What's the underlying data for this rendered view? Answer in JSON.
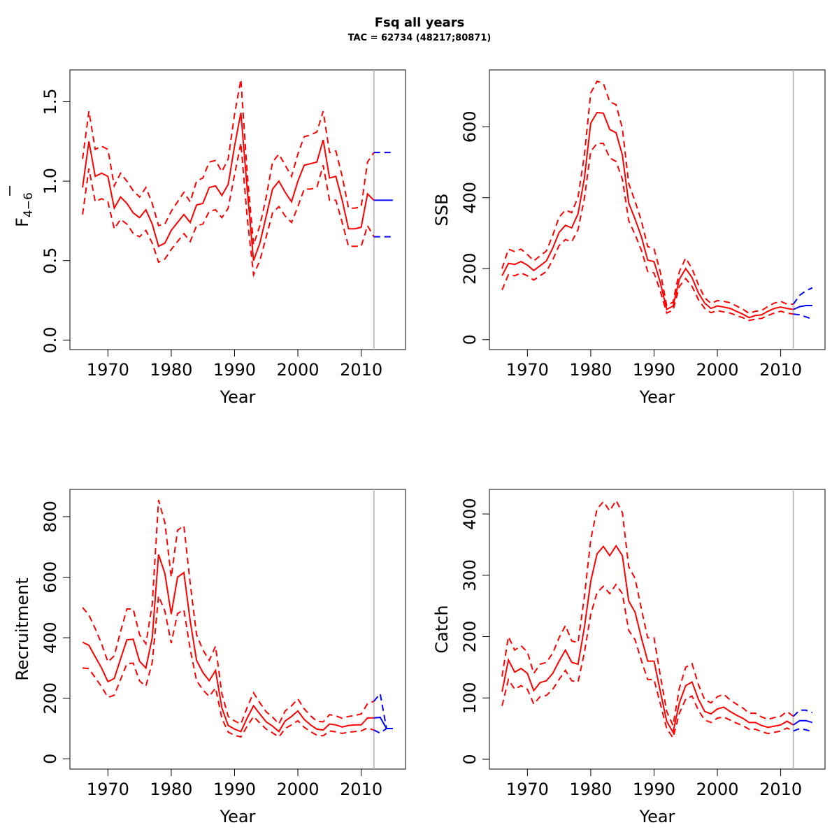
{
  "title": "Fsq all years",
  "subtitle": "TAC = 62734 (48217;80871)",
  "colors": {
    "estimate": "#ff0000",
    "forecast": "#0000ff",
    "divider": "#bebebe"
  },
  "chart_data": [
    {
      "type": "line",
      "panel": "top-left",
      "xlabel": "Year",
      "ylabel": "F",
      "ylabel_sub": "4−6",
      "xlim": [
        1964,
        2017
      ],
      "ylim": [
        -0.06,
        1.7
      ],
      "xticks": [
        1970,
        1980,
        1990,
        2000,
        2010
      ],
      "yticks": [
        0.0,
        0.5,
        1.0,
        1.5
      ],
      "ytick_labels": [
        "0.0",
        "0.5",
        "1.0",
        "1.5"
      ],
      "divider_x": 2012,
      "x": [
        1966,
        1967,
        1968,
        1969,
        1970,
        1971,
        1972,
        1973,
        1974,
        1975,
        1976,
        1977,
        1978,
        1979,
        1980,
        1981,
        1982,
        1983,
        1984,
        1985,
        1986,
        1987,
        1988,
        1989,
        1990,
        1991,
        1992,
        1993,
        1994,
        1995,
        1996,
        1997,
        1998,
        1999,
        2000,
        2001,
        2002,
        2003,
        2004,
        2005,
        2006,
        2007,
        2008,
        2009,
        2010,
        2011,
        2012
      ],
      "series": [
        {
          "role": "estimate",
          "values": [
            0.96,
            1.25,
            1.03,
            1.05,
            1.03,
            0.83,
            0.9,
            0.86,
            0.8,
            0.77,
            0.82,
            0.73,
            0.59,
            0.61,
            0.69,
            0.74,
            0.79,
            0.74,
            0.85,
            0.86,
            0.96,
            0.97,
            0.91,
            0.98,
            1.22,
            1.43,
            0.95,
            0.5,
            0.61,
            0.78,
            0.95,
            1.0,
            0.93,
            0.87,
            1.0,
            1.1,
            1.11,
            1.12,
            1.26,
            1.02,
            1.03,
            0.88,
            0.7,
            0.7,
            0.71,
            0.92,
            0.88
          ]
        },
        {
          "role": "upper",
          "values": [
            1.14,
            1.44,
            1.2,
            1.22,
            1.2,
            0.97,
            1.05,
            1.0,
            0.94,
            0.9,
            0.96,
            0.86,
            0.72,
            0.73,
            0.81,
            0.87,
            0.93,
            0.87,
            1.0,
            1.02,
            1.12,
            1.13,
            1.06,
            1.14,
            1.42,
            1.64,
            1.05,
            0.6,
            0.72,
            0.9,
            1.12,
            1.17,
            1.1,
            1.03,
            1.17,
            1.28,
            1.29,
            1.31,
            1.44,
            1.18,
            1.19,
            1.03,
            0.83,
            0.83,
            0.84,
            1.12,
            1.18
          ]
        },
        {
          "role": "lower",
          "values": [
            0.79,
            1.08,
            0.87,
            0.89,
            0.87,
            0.7,
            0.76,
            0.73,
            0.67,
            0.65,
            0.69,
            0.61,
            0.49,
            0.51,
            0.57,
            0.62,
            0.67,
            0.62,
            0.72,
            0.73,
            0.81,
            0.82,
            0.77,
            0.83,
            1.04,
            1.24,
            0.77,
            0.41,
            0.5,
            0.65,
            0.8,
            0.84,
            0.78,
            0.74,
            0.84,
            0.95,
            0.95,
            0.96,
            1.1,
            0.88,
            0.88,
            0.74,
            0.59,
            0.59,
            0.59,
            0.72,
            0.65
          ]
        }
      ],
      "forecast": {
        "x": [
          2012,
          2013,
          2014,
          2015
        ],
        "estimate": [
          0.88,
          0.88,
          0.88,
          0.88
        ],
        "upper": [
          1.18,
          1.18,
          1.18,
          1.18
        ],
        "lower": [
          0.65,
          0.65,
          0.65,
          0.65
        ]
      }
    },
    {
      "type": "line",
      "panel": "top-right",
      "xlabel": "Year",
      "ylabel": "SSB",
      "xlim": [
        1964,
        2017
      ],
      "ylim": [
        -28,
        760
      ],
      "xticks": [
        1970,
        1980,
        1990,
        2000,
        2010
      ],
      "yticks": [
        0,
        200,
        400,
        600
      ],
      "ytick_labels": [
        "0",
        "200",
        "400",
        "600"
      ],
      "divider_x": 2012,
      "x": [
        1966,
        1967,
        1968,
        1969,
        1970,
        1971,
        1972,
        1973,
        1974,
        1975,
        1976,
        1977,
        1978,
        1979,
        1980,
        1981,
        1982,
        1983,
        1984,
        1985,
        1986,
        1987,
        1988,
        1989,
        1990,
        1991,
        1992,
        1993,
        1994,
        1995,
        1996,
        1997,
        1998,
        1999,
        2000,
        2001,
        2002,
        2003,
        2004,
        2005,
        2006,
        2007,
        2008,
        2009,
        2010,
        2011,
        2012
      ],
      "series": [
        {
          "role": "estimate",
          "values": [
            180,
            215,
            212,
            220,
            210,
            195,
            208,
            222,
            258,
            302,
            322,
            315,
            355,
            455,
            610,
            640,
            638,
            592,
            583,
            520,
            385,
            340,
            290,
            224,
            220,
            160,
            85,
            95,
            170,
            200,
            175,
            132,
            103,
            88,
            95,
            92,
            88,
            80,
            72,
            62,
            68,
            70,
            80,
            88,
            92,
            88,
            85
          ]
        },
        {
          "role": "upper",
          "values": [
            200,
            255,
            248,
            255,
            240,
            222,
            236,
            250,
            294,
            345,
            365,
            358,
            402,
            520,
            695,
            728,
            722,
            670,
            662,
            595,
            440,
            390,
            335,
            262,
            256,
            190,
            95,
            106,
            192,
            230,
            200,
            155,
            118,
            102,
            110,
            108,
            104,
            95,
            86,
            74,
            80,
            82,
            94,
            103,
            108,
            100,
            100
          ]
        },
        {
          "role": "lower",
          "values": [
            140,
            183,
            180,
            188,
            180,
            168,
            180,
            192,
            225,
            265,
            282,
            276,
            310,
            398,
            530,
            553,
            553,
            512,
            502,
            452,
            335,
            296,
            252,
            192,
            188,
            136,
            75,
            83,
            150,
            172,
            150,
            113,
            88,
            76,
            82,
            78,
            75,
            68,
            62,
            54,
            58,
            60,
            68,
            75,
            80,
            75,
            72
          ]
        }
      ],
      "forecast": {
        "x": [
          2012,
          2013,
          2014,
          2015
        ],
        "estimate": [
          85,
          93,
          96,
          96
        ],
        "upper": [
          100,
          125,
          138,
          146
        ],
        "lower": [
          72,
          70,
          64,
          58
        ]
      }
    },
    {
      "type": "line",
      "panel": "bottom-left",
      "xlabel": "Year",
      "ylabel": "Recruitment",
      "xlim": [
        1964,
        2017
      ],
      "ylim": [
        -34,
        890
      ],
      "xticks": [
        1970,
        1980,
        1990,
        2000,
        2010
      ],
      "yticks": [
        0,
        200,
        400,
        600,
        800
      ],
      "ytick_labels": [
        "0",
        "200",
        "400",
        "600",
        "800"
      ],
      "divider_x": 2012,
      "x": [
        1966,
        1967,
        1968,
        1969,
        1970,
        1971,
        1972,
        1973,
        1974,
        1975,
        1976,
        1977,
        1978,
        1979,
        1980,
        1981,
        1982,
        1983,
        1984,
        1985,
        1986,
        1987,
        1988,
        1989,
        1990,
        1991,
        1992,
        1993,
        1994,
        1995,
        1996,
        1997,
        1998,
        1999,
        2000,
        2001,
        2002,
        2003,
        2004,
        2005,
        2006,
        2007,
        2008,
        2009,
        2010,
        2011,
        2012
      ],
      "series": [
        {
          "role": "estimate",
          "values": [
            385,
            375,
            337,
            300,
            255,
            265,
            330,
            393,
            395,
            322,
            300,
            400,
            675,
            612,
            478,
            600,
            615,
            455,
            325,
            285,
            258,
            292,
            168,
            110,
            98,
            90,
            135,
            175,
            148,
            122,
            108,
            90,
            125,
            140,
            158,
            130,
            112,
            98,
            95,
            115,
            112,
            105,
            110,
            112,
            112,
            135,
            135
          ]
        },
        {
          "role": "upper",
          "values": [
            500,
            475,
            430,
            380,
            320,
            340,
            420,
            495,
            495,
            410,
            380,
            510,
            855,
            780,
            600,
            755,
            770,
            580,
            410,
            360,
            325,
            372,
            215,
            140,
            125,
            115,
            170,
            218,
            185,
            155,
            138,
            115,
            158,
            175,
            198,
            165,
            142,
            124,
            122,
            146,
            142,
            134,
            140,
            143,
            148,
            182,
            190
          ]
        },
        {
          "role": "lower",
          "values": [
            300,
            298,
            268,
            238,
            203,
            210,
            262,
            314,
            316,
            257,
            240,
            318,
            538,
            488,
            382,
            480,
            492,
            362,
            258,
            228,
            206,
            234,
            134,
            88,
            78,
            72,
            108,
            140,
            118,
            98,
            86,
            72,
            100,
            112,
            126,
            104,
            90,
            78,
            76,
            92,
            89,
            84,
            88,
            90,
            92,
            102,
            95
          ]
        }
      ],
      "forecast": {
        "x": [
          2012,
          2013,
          2014,
          2015
        ],
        "estimate": [
          135,
          137,
          100,
          100
        ],
        "upper": [
          190,
          215,
          100,
          100
        ],
        "lower": [
          95,
          85,
          100,
          100
        ]
      }
    },
    {
      "type": "line",
      "panel": "bottom-right",
      "xlabel": "Year",
      "ylabel": "Catch",
      "xlim": [
        1964,
        2017
      ],
      "ylim": [
        -16,
        440
      ],
      "xticks": [
        1970,
        1980,
        1990,
        2000,
        2010
      ],
      "yticks": [
        0,
        100,
        200,
        300,
        400
      ],
      "ytick_labels": [
        "0",
        "100",
        "200",
        "300",
        "400"
      ],
      "divider_x": 2012,
      "x": [
        1966,
        1967,
        1968,
        1969,
        1970,
        1971,
        1972,
        1973,
        1974,
        1975,
        1976,
        1977,
        1978,
        1979,
        1980,
        1981,
        1982,
        1983,
        1984,
        1985,
        1986,
        1987,
        1988,
        1989,
        1990,
        1991,
        1992,
        1993,
        1994,
        1995,
        1996,
        1997,
        1998,
        1999,
        2000,
        2001,
        2002,
        2003,
        2004,
        2005,
        2006,
        2007,
        2008,
        2009,
        2010,
        2011,
        2012
      ],
      "series": [
        {
          "role": "estimate",
          "values": [
            110,
            162,
            142,
            148,
            140,
            112,
            125,
            128,
            140,
            160,
            178,
            158,
            155,
            215,
            290,
            335,
            347,
            332,
            348,
            332,
            258,
            240,
            198,
            160,
            160,
            110,
            62,
            44,
            92,
            120,
            126,
            98,
            78,
            74,
            82,
            85,
            78,
            72,
            67,
            60,
            60,
            55,
            52,
            54,
            56,
            62,
            56
          ]
        },
        {
          "role": "upper",
          "values": [
            135,
            200,
            178,
            185,
            175,
            140,
            155,
            158,
            173,
            198,
            218,
            193,
            190,
            265,
            358,
            408,
            420,
            405,
            422,
            402,
            314,
            295,
            245,
            198,
            198,
            136,
            78,
            55,
            116,
            150,
            156,
            122,
            97,
            92,
            102,
            106,
            97,
            90,
            84,
            75,
            75,
            69,
            65,
            68,
            70,
            78,
            70
          ]
        },
        {
          "role": "lower",
          "values": [
            87,
            130,
            114,
            120,
            114,
            90,
            102,
            104,
            114,
            130,
            145,
            128,
            126,
            174,
            236,
            272,
            282,
            270,
            285,
            270,
            210,
            195,
            161,
            130,
            130,
            90,
            50,
            35,
            75,
            98,
            103,
            80,
            64,
            60,
            67,
            69,
            64,
            59,
            55,
            49,
            49,
            45,
            42,
            44,
            46,
            51,
            46
          ]
        }
      ],
      "forecast": {
        "x": [
          2012,
          2013,
          2014,
          2015
        ],
        "estimate": [
          56,
          63,
          63,
          60
        ],
        "upper": [
          70,
          80,
          80,
          76
        ],
        "lower": [
          46,
          50,
          48,
          45
        ]
      }
    }
  ]
}
